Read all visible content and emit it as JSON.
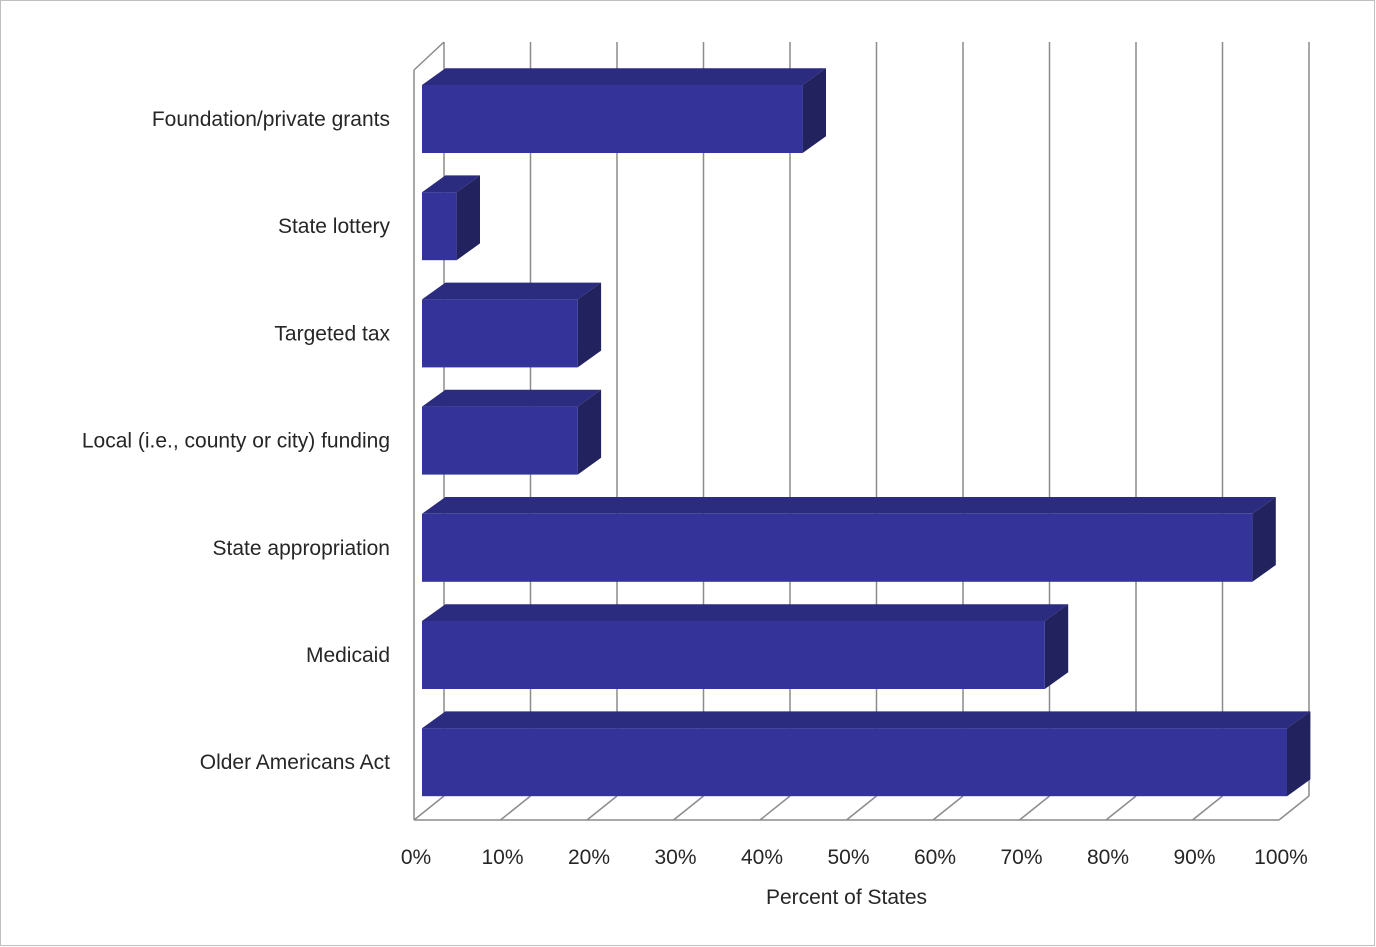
{
  "chart_data": {
    "type": "bar",
    "orientation": "horizontal",
    "style": "3d-clustered",
    "categories": [
      "Foundation/private grants",
      "State lottery",
      "Targeted tax",
      "Local (i.e., county or city) funding",
      "State appropriation",
      "Medicaid",
      "Older Americans Act"
    ],
    "values": [
      44,
      4,
      18,
      18,
      96,
      72,
      100
    ],
    "xlabel": "Percent of States",
    "ylabel": "",
    "xlim": [
      0,
      100
    ],
    "xticks": [
      "0%",
      "10%",
      "20%",
      "30%",
      "40%",
      "50%",
      "60%",
      "70%",
      "80%",
      "90%",
      "100%"
    ],
    "grid": true,
    "legend": "none",
    "colors": {
      "bar_front": "#333399",
      "bar_top": "#2b2b80",
      "bar_side": "#22225e",
      "grid": "#8c8c8c"
    }
  }
}
